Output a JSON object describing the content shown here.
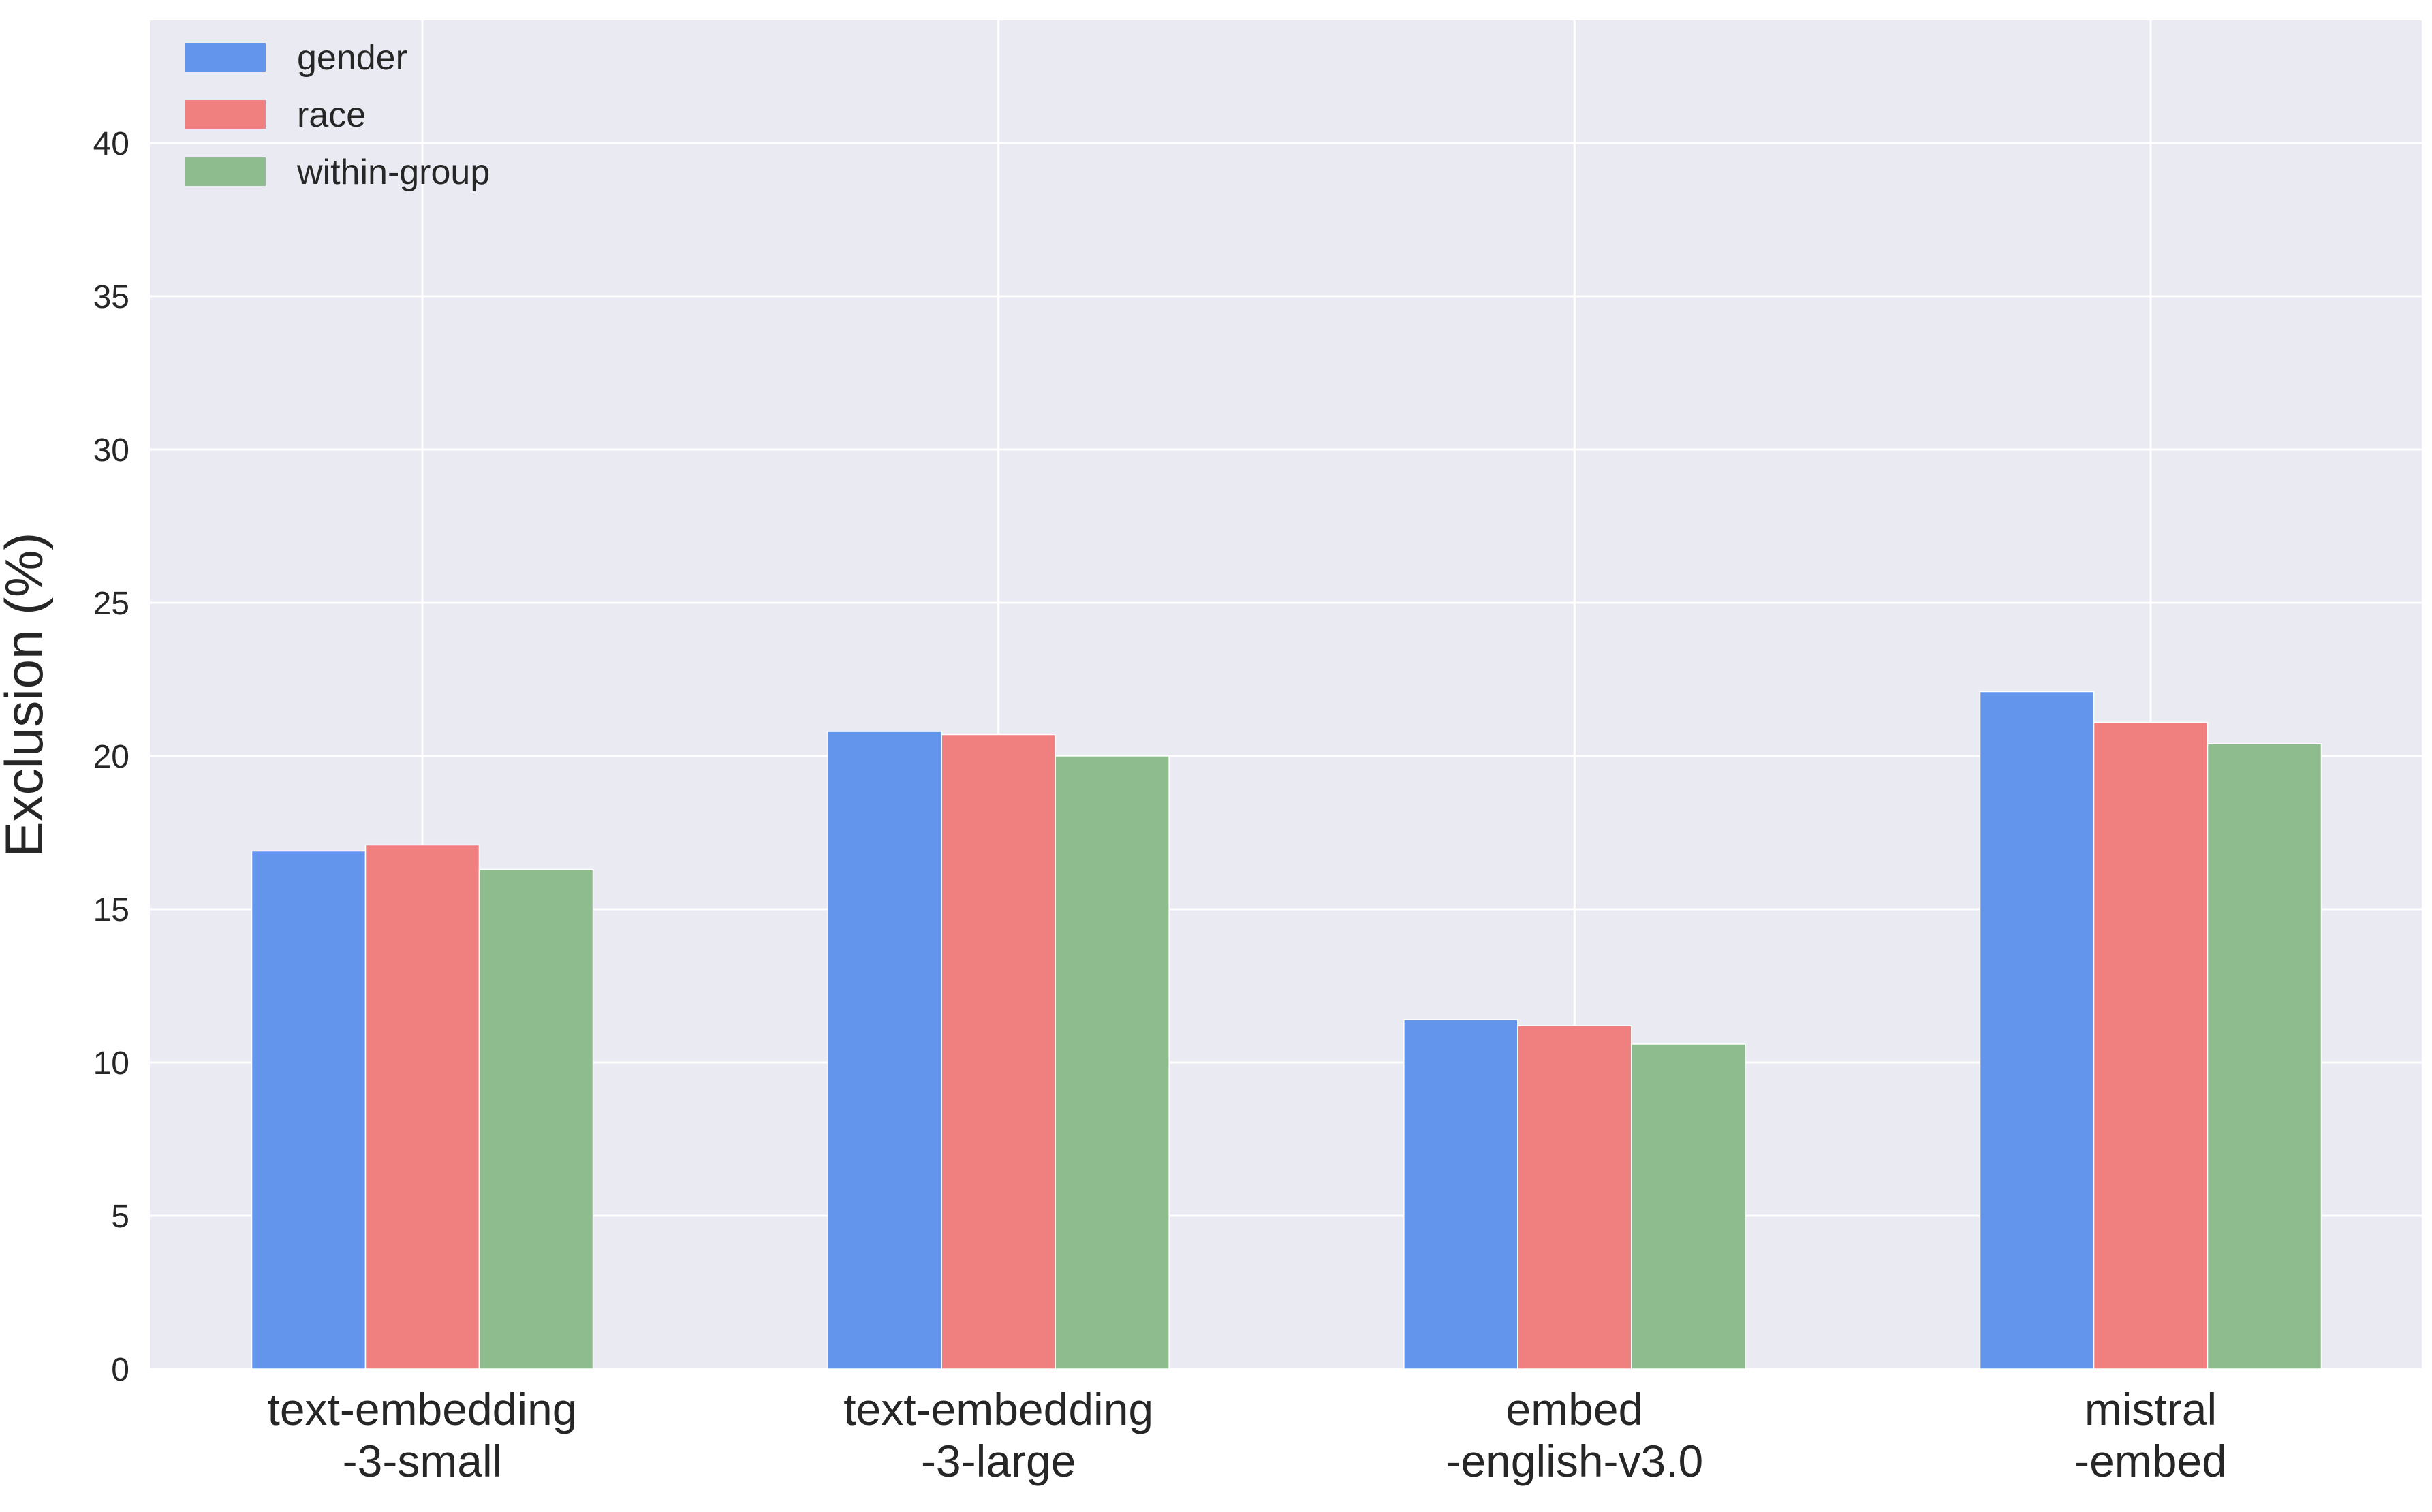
{
  "chart_data": {
    "type": "bar",
    "title": "",
    "xlabel": "",
    "ylabel": "Exclusion (%)",
    "ylim": [
      0,
      44
    ],
    "yticks": [
      0,
      5,
      10,
      15,
      20,
      25,
      30,
      35,
      40
    ],
    "grid": true,
    "legend_position": "top-left",
    "categories": [
      [
        "text-embedding",
        "-3-small"
      ],
      [
        "text-embedding",
        "-3-large"
      ],
      [
        "embed",
        "-english-v3.0"
      ],
      [
        "mistral",
        "-embed"
      ]
    ],
    "series": [
      {
        "name": "gender",
        "color": "#6495ED",
        "values": [
          16.9,
          20.8,
          11.4,
          22.1
        ]
      },
      {
        "name": "race",
        "color": "#F08080",
        "values": [
          17.1,
          20.7,
          11.2,
          21.1
        ]
      },
      {
        "name": "within-group",
        "color": "#8FBC8F",
        "values": [
          16.3,
          20.0,
          10.6,
          20.4
        ]
      }
    ]
  },
  "colors": {
    "plot_background": "#EAEAF2",
    "grid": "#FFFFFF",
    "text": "#262626"
  }
}
